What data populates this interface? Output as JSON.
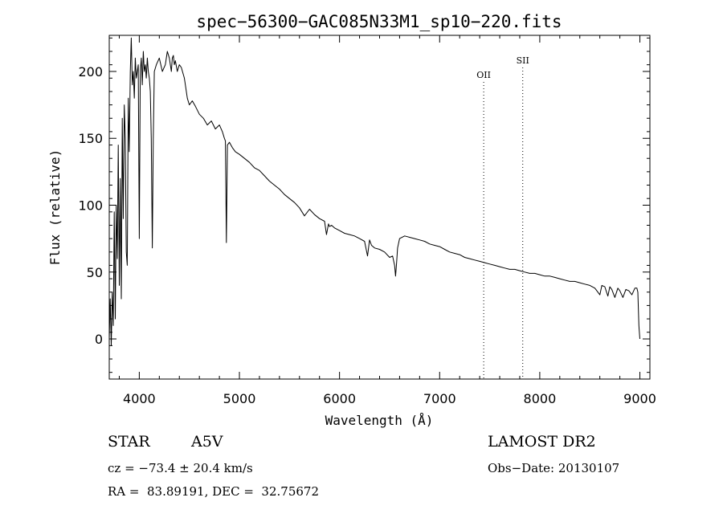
{
  "chart_data": {
    "type": "line",
    "title": "spec−56300−GAC085N33M1_sp10−220.fits",
    "xlabel": "Wavelength (Å)",
    "ylabel": "Flux (relative)",
    "xlim": [
      3700,
      9100
    ],
    "ylim": [
      -30,
      227
    ],
    "xticks": [
      4000,
      5000,
      6000,
      7000,
      8000,
      9000
    ],
    "yticks": [
      0,
      50,
      100,
      150,
      200
    ],
    "grid": false,
    "line_color": "#000000",
    "series": [
      {
        "x": [
          3700,
          3710,
          3720,
          3730,
          3740,
          3750,
          3760,
          3770,
          3780,
          3790,
          3800,
          3810,
          3820,
          3830,
          3840,
          3850,
          3860,
          3870,
          3880,
          3890,
          3900,
          3910,
          3920,
          3930,
          3940,
          3950,
          3960,
          3970,
          3980,
          3990,
          4000,
          4010,
          4020,
          4030,
          4040,
          4050,
          4060,
          4070,
          4080,
          4090,
          4100,
          4110,
          4120,
          4130,
          4140,
          4150,
          4170,
          4200,
          4230,
          4260,
          4280,
          4300,
          4320,
          4330,
          4340,
          4350,
          4360,
          4380,
          4400,
          4420,
          4450,
          4480,
          4500,
          4530,
          4560,
          4600,
          4640,
          4680,
          4720,
          4760,
          4800,
          4830,
          4850,
          4860,
          4870,
          4880,
          4900,
          4930,
          4960,
          5000,
          5050,
          5100,
          5150,
          5200,
          5250,
          5300,
          5350,
          5400,
          5450,
          5500,
          5550,
          5600,
          5650,
          5700,
          5750,
          5800,
          5850,
          5870,
          5890,
          5900,
          5920,
          5950,
          6000,
          6050,
          6100,
          6150,
          6200,
          6250,
          6280,
          6300,
          6320,
          6350,
          6400,
          6450,
          6500,
          6530,
          6550,
          6560,
          6570,
          6580,
          6600,
          6650,
          6700,
          6750,
          6800,
          6850,
          6900,
          6950,
          7000,
          7050,
          7100,
          7150,
          7200,
          7250,
          7300,
          7350,
          7400,
          7450,
          7500,
          7550,
          7600,
          7650,
          7700,
          7750,
          7800,
          7850,
          7900,
          7950,
          8000,
          8050,
          8100,
          8150,
          8200,
          8250,
          8300,
          8350,
          8400,
          8450,
          8500,
          8550,
          8600,
          8620,
          8650,
          8680,
          8700,
          8720,
          8750,
          8780,
          8800,
          8830,
          8860,
          8890,
          8920,
          8950,
          8970,
          8980,
          8990,
          9000
        ],
        "y": [
          0,
          30,
          -5,
          35,
          10,
          95,
          15,
          100,
          60,
          145,
          40,
          120,
          30,
          165,
          90,
          175,
          150,
          65,
          55,
          180,
          140,
          200,
          225,
          190,
          200,
          180,
          210,
          195,
          200,
          205,
          75,
          200,
          210,
          190,
          215,
          200,
          205,
          195,
          210,
          200,
          195,
          185,
          150,
          68,
          150,
          200,
          205,
          210,
          200,
          205,
          215,
          210,
          200,
          210,
          212,
          205,
          208,
          200,
          205,
          203,
          195,
          180,
          175,
          178,
          174,
          168,
          165,
          160,
          163,
          157,
          160,
          155,
          150,
          148,
          72,
          145,
          147,
          143,
          140,
          138,
          135,
          132,
          128,
          126,
          122,
          118,
          115,
          112,
          108,
          105,
          102,
          98,
          92,
          97,
          93,
          90,
          88,
          78,
          86,
          84,
          85,
          83,
          81,
          79,
          78,
          77,
          75,
          73,
          62,
          74,
          70,
          68,
          67,
          65,
          61,
          62,
          55,
          47,
          57,
          68,
          75,
          77,
          76,
          75,
          74,
          73,
          71,
          70,
          69,
          67,
          65,
          64,
          63,
          61,
          60,
          59,
          58,
          57,
          56,
          55,
          54,
          53,
          52,
          52,
          51,
          50,
          49,
          49,
          48,
          47,
          47,
          46,
          45,
          44,
          43,
          43,
          42,
          41,
          40,
          38,
          33,
          40,
          39,
          32,
          39,
          37,
          31,
          38,
          36,
          31,
          37,
          36,
          33,
          38,
          38,
          35,
          10,
          0
        ]
      }
    ],
    "annotations": [
      {
        "label": "OII",
        "x": 7440
      },
      {
        "label": "SII",
        "x": 7830
      }
    ]
  },
  "info": {
    "object_class": "STAR",
    "subclass": "A5V",
    "survey": "LAMOST DR2",
    "cz": "cz = −73.4 ± 20.4 km/s",
    "obs_date": "Obs−Date: 20130107",
    "coords": "RA =  83.89191, DEC =  32.75672"
  }
}
